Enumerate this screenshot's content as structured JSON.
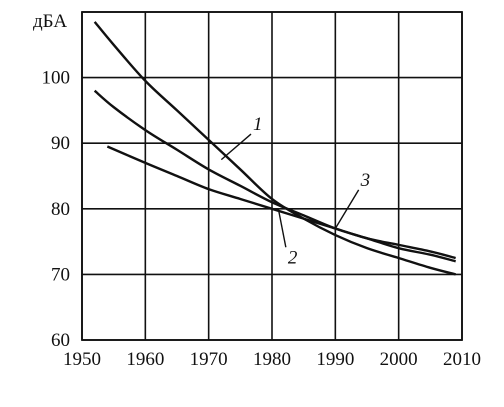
{
  "chart_data": {
    "type": "line",
    "title": "",
    "xlabel": "",
    "ylabel": "дБА",
    "xlim": [
      1950,
      2010
    ],
    "ylim": [
      60,
      110
    ],
    "grid": true,
    "x_ticks": [
      1950,
      1960,
      1970,
      1980,
      1990,
      2000,
      2010
    ],
    "y_ticks": [
      60,
      70,
      80,
      90,
      100
    ],
    "series": [
      {
        "name": "1",
        "x": [
          1952,
          1955,
          1960,
          1965,
          1970,
          1975,
          1980,
          1985,
          1990,
          1995,
          2000,
          2005,
          2009
        ],
        "y": [
          108.5,
          105,
          99.5,
          95,
          90.5,
          86,
          81.5,
          78.5,
          76,
          74,
          72.5,
          71,
          70
        ]
      },
      {
        "name": "2",
        "x": [
          1952,
          1955,
          1960,
          1965,
          1970,
          1975,
          1980,
          1985,
          1990,
          1995,
          2000,
          2005,
          2009
        ],
        "y": [
          98,
          95.5,
          92,
          89,
          86,
          83.5,
          81,
          79,
          77,
          75.5,
          74,
          73,
          72
        ]
      },
      {
        "name": "3",
        "x": [
          1954,
          1960,
          1965,
          1970,
          1975,
          1980,
          1985,
          1990,
          1995,
          2000,
          2005,
          2009
        ],
        "y": [
          89.5,
          87,
          85,
          83,
          81.5,
          80,
          78.5,
          77,
          75.5,
          74.5,
          73.5,
          72.5
        ]
      }
    ],
    "series_labels": [
      {
        "text": "1",
        "series": "1",
        "anchor_x": 1972,
        "anchor_y": 87.5,
        "label_x": 1977,
        "label_y": 92
      },
      {
        "text": "2",
        "series": "2",
        "anchor_x": 1981,
        "anchor_y": 80,
        "label_x": 1982.5,
        "label_y": 72
      },
      {
        "text": "3",
        "series": "3",
        "anchor_x": 1990,
        "anchor_y": 77,
        "label_x": 1994,
        "label_y": 83.5
      }
    ]
  }
}
